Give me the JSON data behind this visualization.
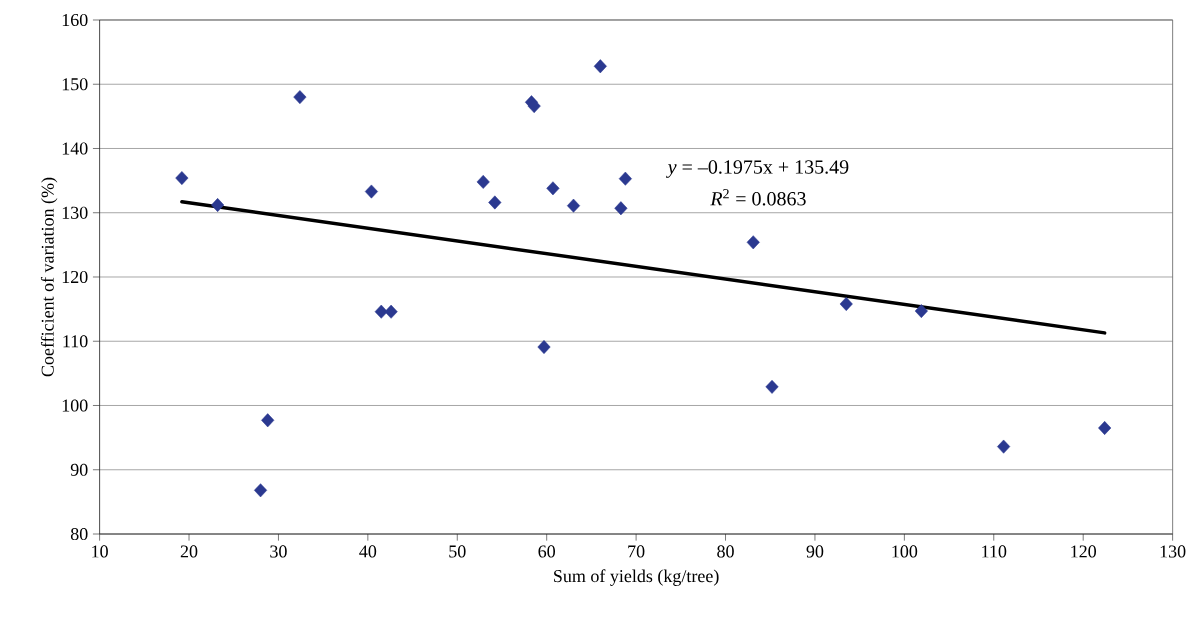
{
  "chart_data": {
    "type": "scatter",
    "xlabel": "Sum of yields (kg/tree)",
    "ylabel": "Coefficient of variation (%)",
    "xlim": [
      10,
      130
    ],
    "xticks": [
      10,
      20,
      30,
      40,
      50,
      60,
      70,
      80,
      90,
      100,
      110,
      120,
      130
    ],
    "ylim": [
      80,
      160
    ],
    "yticks": [
      80,
      90,
      100,
      110,
      120,
      130,
      140,
      150,
      160
    ],
    "grid": "y",
    "series": [
      {
        "marker": "diamond",
        "color": "#2b3990",
        "x": [
          19.2,
          23.2,
          32.4,
          40.4,
          41.5,
          42.6,
          52.9,
          54.2,
          58.3,
          58.6,
          66.0,
          60.7,
          63.0,
          68.3,
          68.8,
          59.7,
          28.8,
          28.0,
          83.1,
          93.5,
          101.9,
          85.2,
          111.1,
          122.4
        ],
        "values": [
          135.4,
          131.2,
          148.0,
          133.3,
          114.6,
          114.6,
          134.8,
          131.6,
          147.2,
          146.6,
          152.8,
          133.8,
          131.1,
          130.7,
          135.3,
          109.1,
          97.7,
          86.8,
          125.4,
          115.8,
          114.7,
          102.9,
          93.6,
          96.5
        ]
      },
      {
        "type": "line",
        "color": "#000000",
        "x": [
          19.2,
          122.4
        ],
        "values": [
          131.7,
          111.3
        ]
      }
    ],
    "annotations": [
      "*y* = –0.1975x + 135.49",
      "*R*$^{2}$ = 0.0863"
    ]
  }
}
